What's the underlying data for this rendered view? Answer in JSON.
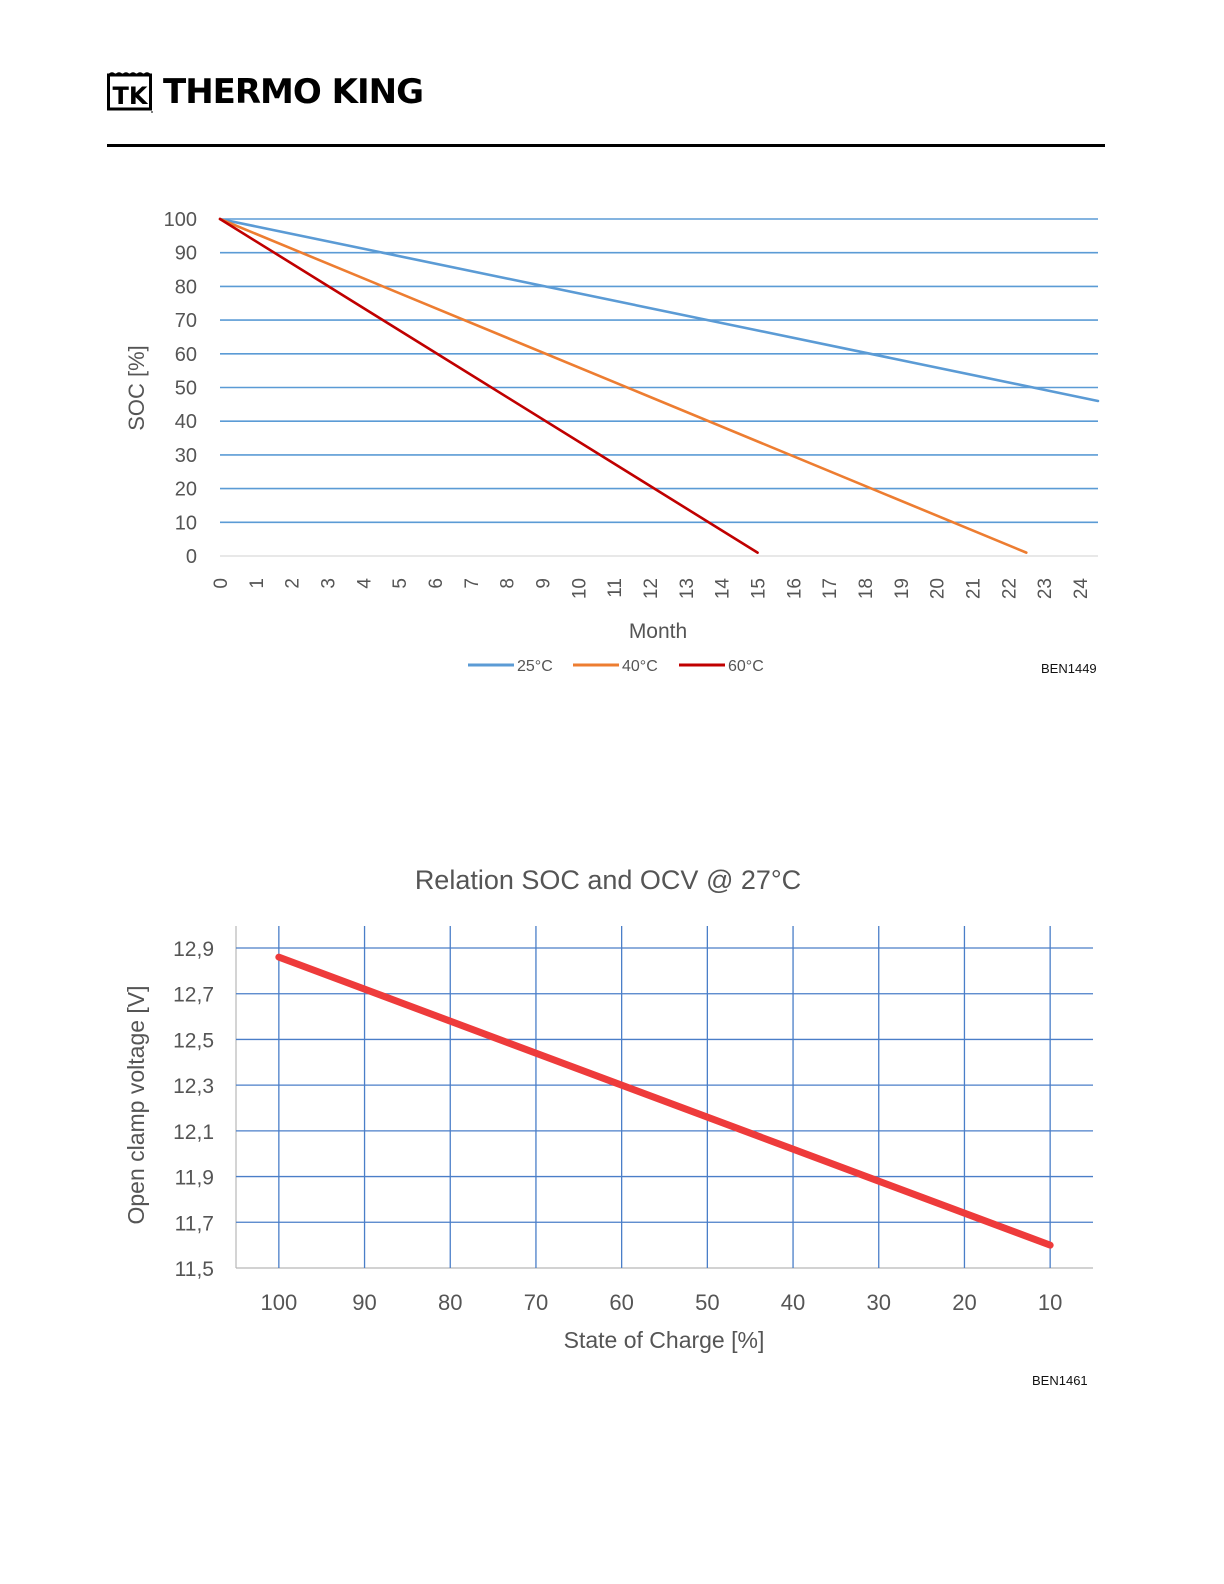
{
  "header": {
    "brand_name": "THERMO KING",
    "logo_text": "TK"
  },
  "chart_data": [
    {
      "type": "line",
      "title": "",
      "xlabel": "Month",
      "ylabel": "SOC [%]",
      "x_ticks": [
        "0",
        "1",
        "2",
        "3",
        "4",
        "5",
        "6",
        "7",
        "8",
        "9",
        "10",
        "11",
        "12",
        "13",
        "14",
        "15",
        "16",
        "17",
        "18",
        "19",
        "20",
        "21",
        "22",
        "23",
        "24"
      ],
      "y_ticks": [
        "100",
        "90",
        "80",
        "70",
        "60",
        "50",
        "40",
        "30",
        "20",
        "10",
        "0"
      ],
      "xlim": [
        0,
        24.5
      ],
      "ylim": [
        0,
        100
      ],
      "grid": "horizontal",
      "legend_position": "bottom",
      "series": [
        {
          "name": "25°C",
          "color": "#5b9bd5",
          "x": [
            0,
            24.5
          ],
          "y": [
            100,
            46
          ]
        },
        {
          "name": "40°C",
          "color": "#ed7d31",
          "x": [
            0,
            22.5
          ],
          "y": [
            100,
            1
          ]
        },
        {
          "name": "60°C",
          "color": "#c00000",
          "x": [
            0,
            15
          ],
          "y": [
            100,
            1
          ]
        }
      ],
      "figure_id": "BEN1449"
    },
    {
      "type": "line",
      "title": "Relation SOC and OCV @ 27°C",
      "xlabel": "State of Charge [%]",
      "ylabel": "Open clamp voltage [V]",
      "x_ticks": [
        "100",
        "90",
        "80",
        "70",
        "60",
        "50",
        "40",
        "30",
        "20",
        "10"
      ],
      "y_ticks": [
        "12,9",
        "12,7",
        "12,5",
        "12,3",
        "12,1",
        "11,9",
        "11,7",
        "11,5"
      ],
      "xlim": [
        105,
        5
      ],
      "ylim": [
        11.5,
        12.9
      ],
      "grid": "both",
      "series": [
        {
          "name": "",
          "color": "#ee3b3b",
          "x": [
            100,
            10
          ],
          "y": [
            12.86,
            11.6
          ]
        }
      ],
      "figure_id": "BEN1461"
    }
  ]
}
